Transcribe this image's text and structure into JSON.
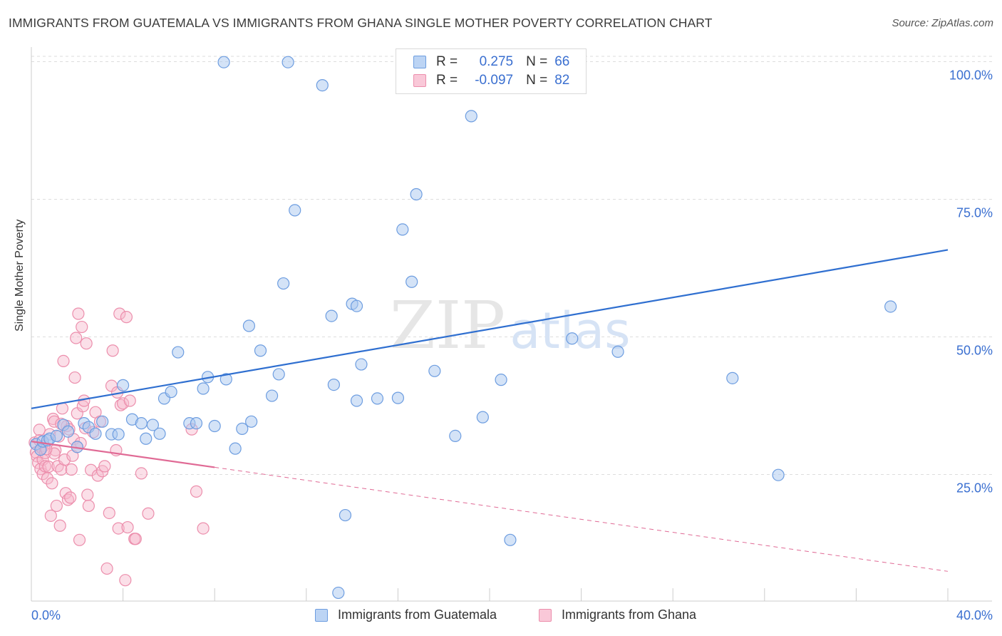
{
  "header": {
    "title": "IMMIGRANTS FROM GUATEMALA VS IMMIGRANTS FROM GHANA SINGLE MOTHER POVERTY CORRELATION CHART",
    "source": "Source: ZipAtlas.com"
  },
  "watermark": {
    "zip": "ZIP",
    "atlas": "atlas"
  },
  "legend": {
    "rows": [
      {
        "r_label": "R =",
        "r_value": "0.275",
        "n_label": "N =",
        "n_value": "66"
      },
      {
        "r_label": "R =",
        "r_value": "-0.097",
        "n_label": "N =",
        "n_value": "82"
      }
    ]
  },
  "bottom_legend": {
    "guatemala": "Immigrants from Guatemala",
    "ghana": "Immigrants from Ghana"
  },
  "colors": {
    "guatemala_fill": "#a9c8f0",
    "guatemala_stroke": "#6d9de0",
    "guatemala_line": "#2f6fd0",
    "ghana_fill": "#f7b8cc",
    "ghana_stroke": "#ec8eac",
    "ghana_line": "#e06a95",
    "tick_label": "#3a6fd0",
    "grid": "#dddddd"
  },
  "chart_data": {
    "type": "scatter",
    "title": "IMMIGRANTS FROM GUATEMALA VS IMMIGRANTS FROM GHANA SINGLE MOTHER POVERTY CORRELATION CHART",
    "xlabel": "",
    "ylabel": "Single Mother Poverty",
    "xlim": [
      0,
      40
    ],
    "ylim": [
      2,
      102
    ],
    "x_tick_labels": [
      "0.0%",
      "40.0%"
    ],
    "y_ticks": [
      25,
      50,
      75,
      100
    ],
    "y_tick_labels": [
      "25.0%",
      "50.0%",
      "75.0%",
      "100.0%"
    ],
    "grid": true,
    "legend_position": "top-center",
    "series": [
      {
        "name": "Immigrants from Guatemala",
        "r": 0.275,
        "n": 66,
        "trend": {
          "x": [
            0,
            40
          ],
          "y": [
            37.0,
            65.8
          ],
          "style": "solid"
        },
        "points": [
          [
            0.2,
            30.5
          ],
          [
            0.4,
            29.5
          ],
          [
            0.5,
            31.0
          ],
          [
            0.7,
            31.2
          ],
          [
            0.8,
            31.5
          ],
          [
            1.1,
            32.0
          ],
          [
            1.4,
            34.0
          ],
          [
            1.6,
            32.8
          ],
          [
            2.0,
            30.0
          ],
          [
            2.3,
            34.3
          ],
          [
            2.5,
            33.6
          ],
          [
            2.8,
            32.4
          ],
          [
            3.1,
            34.6
          ],
          [
            3.5,
            32.3
          ],
          [
            3.8,
            32.3
          ],
          [
            4.0,
            41.2
          ],
          [
            4.4,
            35.0
          ],
          [
            4.8,
            34.3
          ],
          [
            5.0,
            31.5
          ],
          [
            5.3,
            34.0
          ],
          [
            5.6,
            32.4
          ],
          [
            5.8,
            38.8
          ],
          [
            6.1,
            40.0
          ],
          [
            6.4,
            47.2
          ],
          [
            6.9,
            34.3
          ],
          [
            7.2,
            34.3
          ],
          [
            7.5,
            40.6
          ],
          [
            7.7,
            42.7
          ],
          [
            8.0,
            33.8
          ],
          [
            8.5,
            42.3
          ],
          [
            8.9,
            29.7
          ],
          [
            9.2,
            33.3
          ],
          [
            9.6,
            34.6
          ],
          [
            9.5,
            52.0
          ],
          [
            10.0,
            47.5
          ],
          [
            10.5,
            39.3
          ],
          [
            10.8,
            43.2
          ],
          [
            11.0,
            59.7
          ],
          [
            11.5,
            73.0
          ],
          [
            13.1,
            53.8
          ],
          [
            13.2,
            41.3
          ],
          [
            14.0,
            56.0
          ],
          [
            14.2,
            55.6
          ],
          [
            14.2,
            38.4
          ],
          [
            14.4,
            45.0
          ],
          [
            15.1,
            38.8
          ],
          [
            16.0,
            38.9
          ],
          [
            16.2,
            69.5
          ],
          [
            16.6,
            60.0
          ],
          [
            16.8,
            75.9
          ],
          [
            17.6,
            43.8
          ],
          [
            18.5,
            32.0
          ],
          [
            19.2,
            90.1
          ],
          [
            19.7,
            35.4
          ],
          [
            20.5,
            42.2
          ],
          [
            20.9,
            13.1
          ],
          [
            23.6,
            49.7
          ],
          [
            25.6,
            47.3
          ],
          [
            30.6,
            42.5
          ],
          [
            32.6,
            24.9
          ],
          [
            37.5,
            55.5
          ],
          [
            8.4,
            99.9
          ],
          [
            11.2,
            99.9
          ],
          [
            12.7,
            95.7
          ],
          [
            13.7,
            17.6
          ],
          [
            13.4,
            3.5
          ]
        ]
      },
      {
        "name": "Immigrants from Ghana",
        "r": -0.097,
        "n": 82,
        "trend": {
          "x": [
            0,
            8
          ],
          "y": [
            31.0,
            26.3
          ],
          "style": "solid",
          "dashed_to": [
            40,
            7.4
          ]
        },
        "points": [
          [
            0.15,
            30.8
          ],
          [
            0.2,
            29.0
          ],
          [
            0.25,
            28.3
          ],
          [
            0.3,
            27.1
          ],
          [
            0.35,
            33.1
          ],
          [
            0.35,
            31.2
          ],
          [
            0.4,
            26.0
          ],
          [
            0.45,
            29.8
          ],
          [
            0.5,
            27.7
          ],
          [
            0.5,
            25.1
          ],
          [
            0.55,
            30.2
          ],
          [
            0.6,
            26.5
          ],
          [
            0.6,
            28.9
          ],
          [
            0.7,
            24.3
          ],
          [
            0.75,
            26.4
          ],
          [
            0.8,
            32.3
          ],
          [
            0.85,
            17.5
          ],
          [
            0.9,
            23.4
          ],
          [
            0.95,
            35.1
          ],
          [
            1.0,
            34.6
          ],
          [
            1.05,
            29.4
          ],
          [
            1.1,
            19.3
          ],
          [
            1.15,
            26.5
          ],
          [
            1.2,
            31.9
          ],
          [
            1.25,
            15.7
          ],
          [
            1.3,
            25.9
          ],
          [
            1.35,
            37.0
          ],
          [
            1.4,
            45.6
          ],
          [
            1.45,
            27.7
          ],
          [
            1.5,
            21.6
          ],
          [
            1.55,
            33.8
          ],
          [
            1.6,
            20.4
          ],
          [
            1.65,
            33.2
          ],
          [
            1.7,
            20.8
          ],
          [
            1.75,
            25.9
          ],
          [
            1.8,
            28.4
          ],
          [
            1.85,
            31.4
          ],
          [
            1.9,
            42.6
          ],
          [
            1.95,
            49.8
          ],
          [
            2.0,
            36.1
          ],
          [
            2.05,
            54.2
          ],
          [
            2.1,
            13.1
          ],
          [
            2.15,
            30.7
          ],
          [
            2.2,
            51.8
          ],
          [
            2.25,
            37.4
          ],
          [
            2.3,
            38.4
          ],
          [
            2.35,
            33.4
          ],
          [
            2.4,
            48.8
          ],
          [
            2.45,
            21.3
          ],
          [
            2.5,
            19.3
          ],
          [
            2.6,
            25.8
          ],
          [
            2.7,
            32.7
          ],
          [
            2.8,
            36.3
          ],
          [
            2.9,
            24.8
          ],
          [
            3.0,
            34.6
          ],
          [
            3.1,
            25.6
          ],
          [
            3.2,
            26.5
          ],
          [
            3.3,
            7.9
          ],
          [
            3.4,
            18.0
          ],
          [
            3.5,
            41.1
          ],
          [
            3.55,
            47.5
          ],
          [
            3.7,
            29.4
          ],
          [
            3.75,
            39.9
          ],
          [
            3.8,
            15.2
          ],
          [
            3.85,
            54.2
          ],
          [
            3.9,
            37.6
          ],
          [
            4.0,
            37.9
          ],
          [
            4.1,
            5.8
          ],
          [
            4.15,
            53.6
          ],
          [
            4.2,
            15.4
          ],
          [
            4.3,
            38.4
          ],
          [
            4.5,
            13.3
          ],
          [
            4.55,
            13.3
          ],
          [
            4.8,
            25.2
          ],
          [
            5.1,
            17.9
          ],
          [
            7.0,
            33.2
          ],
          [
            7.2,
            21.9
          ],
          [
            7.5,
            15.2
          ],
          [
            1.0,
            28.8
          ],
          [
            2.0,
            30.0
          ],
          [
            0.65,
            29.6
          ],
          [
            1.3,
            34.2
          ]
        ]
      }
    ]
  }
}
